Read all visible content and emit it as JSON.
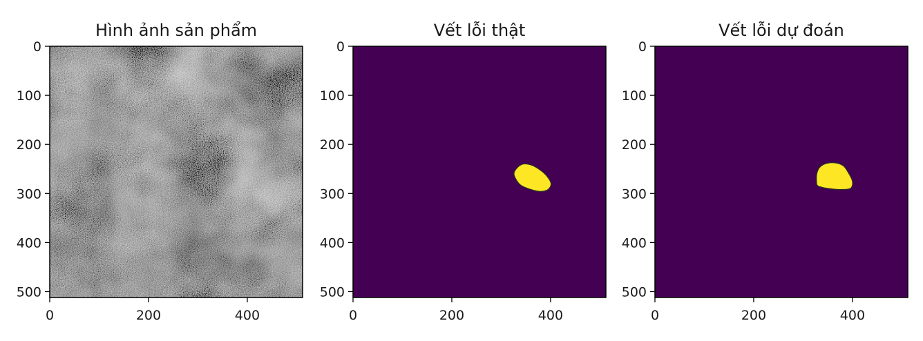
{
  "chart_data": [
    {
      "type": "heatmap",
      "title": "Hình ảnh sản phẩm",
      "colormap": "gray",
      "xlim": [
        0,
        512
      ],
      "ylim": [
        512,
        0
      ],
      "x_ticks": [
        0,
        200,
        400
      ],
      "y_ticks": [
        0,
        100,
        200,
        300,
        400,
        500
      ],
      "content": "grayscale noise texture"
    },
    {
      "type": "heatmap",
      "title": "Vết lỗi thật",
      "colormap": "viridis",
      "background_color": "#440154",
      "defect_color": "#fde725",
      "xlim": [
        0,
        512
      ],
      "ylim": [
        512,
        0
      ],
      "x_ticks": [
        0,
        200,
        400
      ],
      "y_ticks": [
        0,
        100,
        200,
        300,
        400,
        500
      ],
      "defect_outline": [
        [
          326,
          262
        ],
        [
          331,
          249
        ],
        [
          344,
          240
        ],
        [
          361,
          242
        ],
        [
          379,
          252
        ],
        [
          393,
          265
        ],
        [
          401,
          280
        ],
        [
          395,
          292
        ],
        [
          380,
          296
        ],
        [
          360,
          292
        ],
        [
          338,
          282
        ]
      ]
    },
    {
      "type": "heatmap",
      "title": "Vết lỗi dự đoán",
      "colormap": "viridis",
      "background_color": "#440154",
      "defect_color": "#fde725",
      "xlim": [
        0,
        512
      ],
      "ylim": [
        512,
        0
      ],
      "x_ticks": [
        0,
        200,
        400
      ],
      "y_ticks": [
        0,
        100,
        200,
        300,
        400,
        500
      ],
      "defect_outline": [
        [
          327,
          275
        ],
        [
          328,
          258
        ],
        [
          335,
          245
        ],
        [
          350,
          238
        ],
        [
          368,
          238
        ],
        [
          382,
          244
        ],
        [
          392,
          258
        ],
        [
          400,
          275
        ],
        [
          397,
          289
        ],
        [
          382,
          292
        ],
        [
          360,
          291
        ],
        [
          340,
          288
        ],
        [
          329,
          284
        ]
      ]
    }
  ]
}
